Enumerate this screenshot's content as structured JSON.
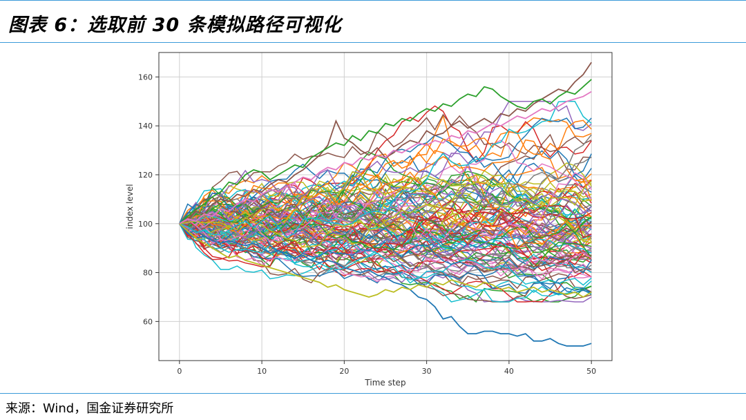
{
  "header": {
    "title": "图表 6：选取前 30 条模拟路径可视化"
  },
  "footer": {
    "source": "来源：Wind，国金证券研究所"
  },
  "chart_data": {
    "type": "line",
    "title": "",
    "xlabel": "Time step",
    "ylabel": "index level",
    "xlim": [
      -2.5,
      52.5
    ],
    "ylim": [
      44,
      170
    ],
    "xticks": [
      0,
      10,
      20,
      30,
      40,
      50
    ],
    "yticks": [
      60,
      80,
      100,
      120,
      140,
      160
    ],
    "grid": true,
    "legend": "none",
    "palette": [
      "#1f77b4",
      "#ff7f0e",
      "#2ca02c",
      "#d62728",
      "#9467bd",
      "#8c564b",
      "#e377c2",
      "#7f7f7f",
      "#bcbd22",
      "#17becf"
    ],
    "steps": 51,
    "start_value": 100,
    "background_path_count": 110,
    "highlight_series": [
      {
        "color": "#1f77b4",
        "values": [
          100,
          96,
          94,
          95,
          93,
          92,
          93,
          92,
          91,
          92,
          90,
          88,
          89,
          87,
          86,
          87,
          85,
          84,
          85,
          84,
          82,
          81,
          80,
          81,
          79,
          78,
          76,
          75,
          73,
          70,
          69,
          66,
          61,
          62,
          58,
          55,
          55,
          56,
          56,
          55,
          55,
          54,
          55,
          52,
          52,
          53,
          51,
          50,
          50,
          50,
          51
        ]
      },
      {
        "color": "#8c564b",
        "values": [
          100,
          102,
          105,
          104,
          108,
          110,
          109,
          112,
          111,
          114,
          113,
          116,
          118,
          117,
          120,
          122,
          125,
          128,
          132,
          142,
          135,
          133,
          130,
          128,
          131,
          127,
          129,
          132,
          134,
          133,
          138,
          136,
          137,
          140,
          142,
          139,
          141,
          143,
          141,
          145,
          144,
          147,
          146,
          149,
          151,
          153,
          155,
          154,
          158,
          161,
          166
        ]
      },
      {
        "color": "#2ca02c",
        "values": [
          100,
          103,
          106,
          108,
          111,
          113,
          117,
          116,
          120,
          122,
          121,
          118,
          120,
          122,
          124,
          123,
          127,
          129,
          131,
          133,
          132,
          136,
          134,
          138,
          137,
          141,
          140,
          143,
          142,
          145,
          147,
          146,
          149,
          148,
          151,
          153,
          152,
          156,
          155,
          152,
          150,
          148,
          147,
          150,
          151,
          149,
          152,
          154,
          153,
          156,
          159
        ]
      },
      {
        "color": "#bcbd22",
        "values": [
          100,
          97,
          94,
          92,
          90,
          88,
          86,
          87,
          85,
          84,
          83,
          82,
          81,
          80,
          79,
          78,
          77,
          76,
          74,
          75,
          73,
          72,
          71,
          70,
          71,
          73,
          72,
          74,
          73,
          75,
          74,
          76,
          75,
          77,
          76,
          75,
          74,
          76,
          75,
          73,
          74,
          72,
          73,
          74,
          72,
          73,
          72,
          71,
          72,
          70,
          72
        ]
      },
      {
        "color": "#e377c2",
        "values": [
          100,
          102,
          101,
          104,
          103,
          106,
          105,
          108,
          110,
          109,
          112,
          114,
          113,
          115,
          117,
          119,
          118,
          121,
          123,
          122,
          125,
          124,
          127,
          126,
          128,
          127,
          130,
          129,
          131,
          133,
          132,
          134,
          133,
          136,
          135,
          138,
          137,
          139,
          141,
          140,
          142,
          144,
          143,
          145,
          147,
          146,
          148,
          150,
          151,
          152,
          154
        ]
      }
    ]
  }
}
